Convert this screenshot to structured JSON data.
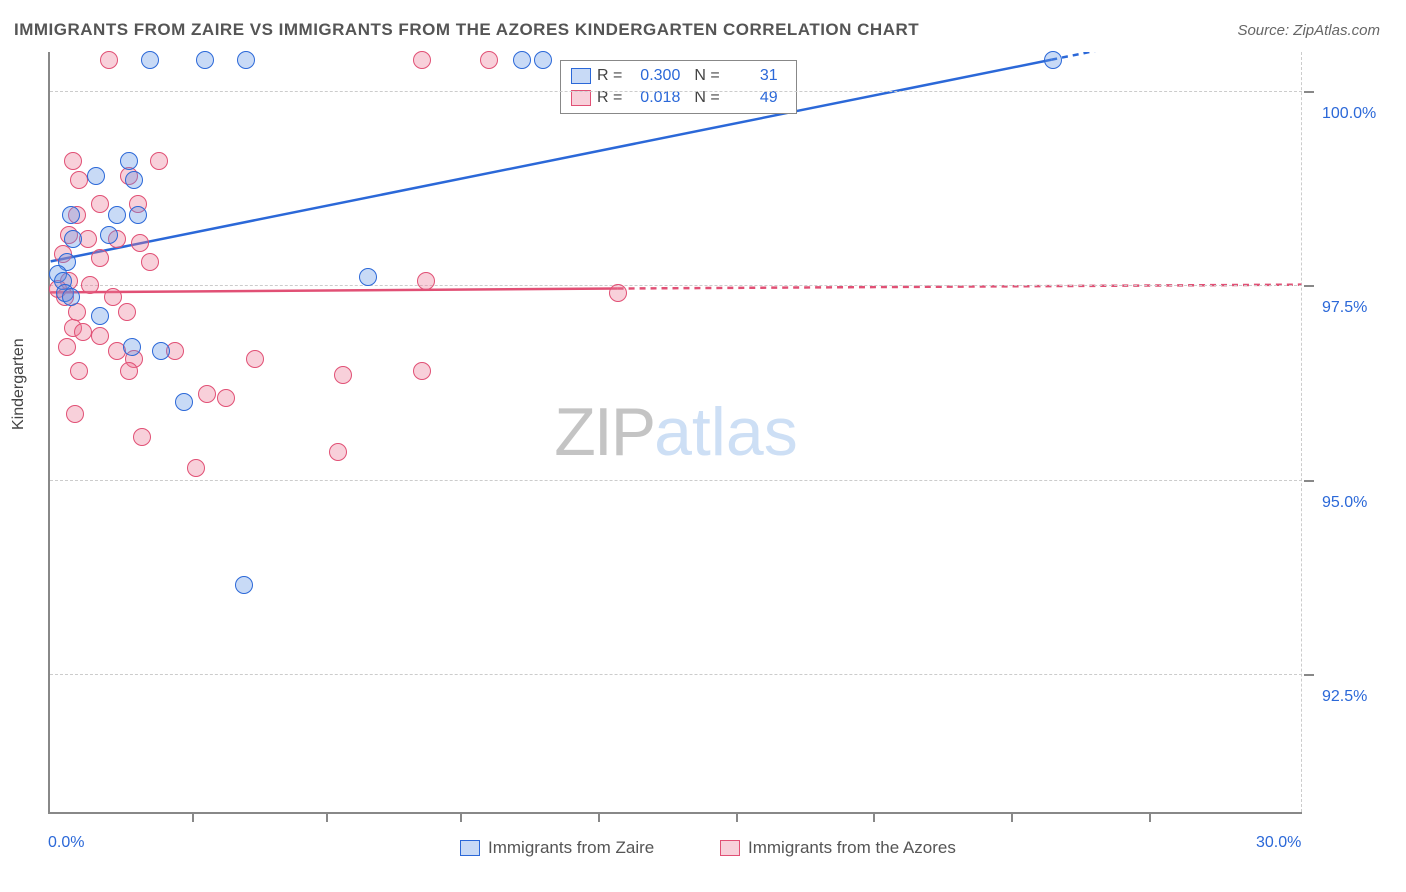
{
  "title": "IMMIGRANTS FROM ZAIRE VS IMMIGRANTS FROM THE AZORES KINDERGARTEN CORRELATION CHART",
  "source": "Source: ZipAtlas.com",
  "y_axis_label": "Kindergarten",
  "watermark": {
    "part1": "ZIP",
    "part2": "atlas"
  },
  "plot": {
    "xlim": [
      0.0,
      30.0
    ],
    "ylim": [
      90.7,
      100.5
    ],
    "x_ticks": [
      0.0,
      30.0
    ],
    "x_tick_labels": [
      "0.0%",
      "30.0%"
    ],
    "y_gridlines": [
      92.5,
      95.0,
      97.5,
      100.0
    ],
    "y_tick_labels": [
      "92.5%",
      "95.0%",
      "97.5%",
      "100.0%"
    ],
    "x_inner_ticks": [
      3.4,
      6.6,
      9.8,
      13.1,
      16.4,
      19.7,
      23.0,
      26.3
    ],
    "background_color": "#ffffff",
    "grid_color": "#cccccc"
  },
  "series": {
    "zaire": {
      "label": "Immigrants from Zaire",
      "fill": "rgba(96,150,230,0.35)",
      "stroke": "#2b68d8",
      "r_value": "0.300",
      "n_value": "31",
      "points": [
        [
          2.4,
          100.4
        ],
        [
          3.7,
          100.4
        ],
        [
          4.7,
          100.4
        ],
        [
          11.3,
          100.4
        ],
        [
          11.8,
          100.4
        ],
        [
          24.0,
          100.4
        ],
        [
          1.9,
          99.1
        ],
        [
          1.1,
          98.9
        ],
        [
          2.0,
          98.85
        ],
        [
          0.5,
          98.4
        ],
        [
          1.6,
          98.4
        ],
        [
          2.1,
          98.4
        ],
        [
          0.55,
          98.1
        ],
        [
          1.4,
          98.15
        ],
        [
          0.4,
          97.8
        ],
        [
          0.2,
          97.65
        ],
        [
          0.3,
          97.55
        ],
        [
          7.6,
          97.6
        ],
        [
          0.35,
          97.4
        ],
        [
          0.5,
          97.35
        ],
        [
          1.2,
          97.1
        ],
        [
          1.95,
          96.7
        ],
        [
          2.65,
          96.65
        ],
        [
          3.2,
          96.0
        ],
        [
          4.65,
          93.65
        ]
      ],
      "trend": {
        "x1": 0.0,
        "y1": 97.8,
        "x2": 24.0,
        "y2": 100.4,
        "dash_x1": 24.0,
        "dash_y1": 100.4,
        "dash_x2": 30.0,
        "dash_y2": 101.05
      }
    },
    "azores": {
      "label": "Immigrants from the Azores",
      "fill": "rgba(235,120,150,0.35)",
      "stroke": "#e15075",
      "r_value": "0.018",
      "n_value": "49",
      "points": [
        [
          1.4,
          100.4
        ],
        [
          8.9,
          100.4
        ],
        [
          10.5,
          100.4
        ],
        [
          2.6,
          99.1
        ],
        [
          0.55,
          99.1
        ],
        [
          1.9,
          98.9
        ],
        [
          0.7,
          98.85
        ],
        [
          1.2,
          98.55
        ],
        [
          2.1,
          98.55
        ],
        [
          0.65,
          98.4
        ],
        [
          0.45,
          98.15
        ],
        [
          1.6,
          98.1
        ],
        [
          0.9,
          98.1
        ],
        [
          2.15,
          98.05
        ],
        [
          0.3,
          97.9
        ],
        [
          1.2,
          97.85
        ],
        [
          2.4,
          97.8
        ],
        [
          0.45,
          97.55
        ],
        [
          0.95,
          97.5
        ],
        [
          0.2,
          97.45
        ],
        [
          9.0,
          97.55
        ],
        [
          0.35,
          97.35
        ],
        [
          1.5,
          97.35
        ],
        [
          13.6,
          97.4
        ],
        [
          0.65,
          97.15
        ],
        [
          1.85,
          97.15
        ],
        [
          0.55,
          96.95
        ],
        [
          0.8,
          96.9
        ],
        [
          1.2,
          96.85
        ],
        [
          0.4,
          96.7
        ],
        [
          1.6,
          96.65
        ],
        [
          3.0,
          96.65
        ],
        [
          2.0,
          96.55
        ],
        [
          4.9,
          96.55
        ],
        [
          0.7,
          96.4
        ],
        [
          1.9,
          96.4
        ],
        [
          8.9,
          96.4
        ],
        [
          7.0,
          96.35
        ],
        [
          3.75,
          96.1
        ],
        [
          4.2,
          96.05
        ],
        [
          0.6,
          95.85
        ],
        [
          2.2,
          95.55
        ],
        [
          6.9,
          95.35
        ],
        [
          3.5,
          95.15
        ]
      ],
      "trend": {
        "x1": 0.0,
        "y1": 97.4,
        "x2": 13.6,
        "y2": 97.45,
        "dash_x1": 13.6,
        "dash_y1": 97.45,
        "dash_x2": 30.0,
        "dash_y2": 97.5
      }
    }
  },
  "legend_top": {
    "r_label": "R =",
    "n_label": "N ="
  }
}
